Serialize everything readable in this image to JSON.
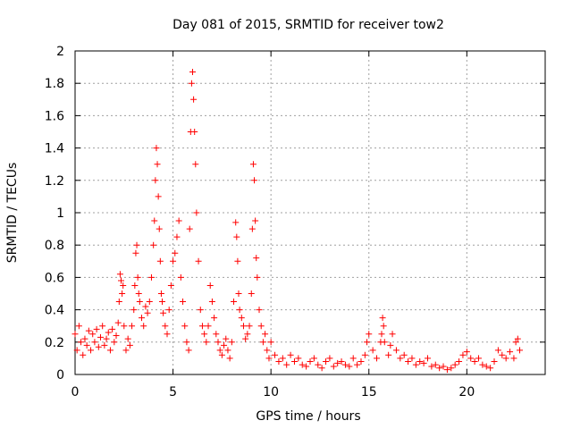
{
  "chart_data": {
    "type": "scatter",
    "title": "Day 081 of 2015, SRMTID for receiver tow2",
    "xlabel": "GPS time / hours",
    "ylabel": "SRMTID / TECUs",
    "xlim": [
      0,
      24
    ],
    "ylim": [
      0,
      2
    ],
    "xticks": [
      0,
      5,
      10,
      15,
      20
    ],
    "xtick_labels": [
      "0",
      "5",
      "10",
      "15",
      "20"
    ],
    "yticks": [
      0,
      0.2,
      0.4,
      0.6,
      0.8,
      1,
      1.2,
      1.4,
      1.6,
      1.8,
      2
    ],
    "ytick_labels": [
      "0",
      "0.2",
      "0.4",
      "0.6",
      "0.8",
      "1",
      "1.2",
      "1.4",
      "1.6",
      "1.8",
      "2"
    ],
    "grid": true,
    "marker": "+",
    "color": "#ff0000",
    "series": [
      {
        "name": "tow2",
        "x": [
          0.0,
          0.1,
          0.2,
          0.3,
          0.4,
          0.5,
          0.6,
          0.7,
          0.8,
          0.9,
          1.0,
          1.1,
          1.2,
          1.3,
          1.4,
          1.5,
          1.6,
          1.7,
          1.8,
          1.9,
          2.0,
          2.1,
          2.2,
          2.25,
          2.3,
          2.35,
          2.4,
          2.45,
          2.5,
          2.6,
          2.7,
          2.8,
          2.9,
          3.0,
          3.05,
          3.1,
          3.15,
          3.2,
          3.25,
          3.3,
          3.4,
          3.5,
          3.6,
          3.7,
          3.8,
          3.9,
          4.0,
          4.05,
          4.1,
          4.15,
          4.2,
          4.25,
          4.3,
          4.35,
          4.4,
          4.45,
          4.5,
          4.6,
          4.7,
          4.8,
          4.9,
          5.0,
          5.1,
          5.2,
          5.3,
          5.4,
          5.5,
          5.6,
          5.7,
          5.8,
          5.85,
          5.9,
          5.95,
          6.0,
          6.05,
          6.1,
          6.15,
          6.2,
          6.3,
          6.4,
          6.5,
          6.6,
          6.7,
          6.8,
          6.9,
          7.0,
          7.1,
          7.2,
          7.3,
          7.4,
          7.5,
          7.6,
          7.7,
          7.8,
          7.9,
          8.0,
          8.1,
          8.2,
          8.25,
          8.3,
          8.35,
          8.4,
          8.5,
          8.6,
          8.7,
          8.8,
          8.9,
          9.0,
          9.05,
          9.1,
          9.15,
          9.2,
          9.25,
          9.3,
          9.4,
          9.5,
          9.6,
          9.7,
          9.8,
          9.9,
          10.0,
          10.2,
          10.4,
          10.6,
          10.8,
          11.0,
          11.2,
          11.4,
          11.6,
          11.8,
          12.0,
          12.2,
          12.4,
          12.6,
          12.8,
          13.0,
          13.2,
          13.4,
          13.6,
          13.8,
          14.0,
          14.2,
          14.4,
          14.6,
          14.8,
          14.9,
          15.0,
          15.2,
          15.4,
          15.6,
          15.65,
          15.7,
          15.75,
          15.8,
          16.0,
          16.1,
          16.2,
          16.4,
          16.6,
          16.8,
          17.0,
          17.2,
          17.4,
          17.6,
          17.8,
          18.0,
          18.2,
          18.4,
          18.6,
          18.8,
          19.0,
          19.2,
          19.4,
          19.6,
          19.8,
          20.0,
          20.2,
          20.4,
          20.6,
          20.8,
          21.0,
          21.2,
          21.4,
          21.6,
          21.8,
          22.0,
          22.2,
          22.4,
          22.5,
          22.6,
          22.7
        ],
        "y": [
          0.25,
          0.15,
          0.3,
          0.2,
          0.12,
          0.22,
          0.18,
          0.27,
          0.15,
          0.25,
          0.2,
          0.28,
          0.17,
          0.23,
          0.3,
          0.18,
          0.22,
          0.26,
          0.15,
          0.28,
          0.2,
          0.24,
          0.32,
          0.45,
          0.62,
          0.58,
          0.5,
          0.55,
          0.3,
          0.15,
          0.22,
          0.18,
          0.3,
          0.4,
          0.55,
          0.75,
          0.8,
          0.6,
          0.5,
          0.45,
          0.35,
          0.3,
          0.42,
          0.38,
          0.45,
          0.6,
          0.8,
          0.95,
          1.2,
          1.4,
          1.3,
          1.1,
          0.9,
          0.7,
          0.5,
          0.45,
          0.38,
          0.3,
          0.25,
          0.4,
          0.55,
          0.7,
          0.75,
          0.85,
          0.95,
          0.6,
          0.45,
          0.3,
          0.2,
          0.15,
          0.9,
          1.5,
          1.8,
          1.87,
          1.7,
          1.5,
          1.3,
          1.0,
          0.7,
          0.4,
          0.3,
          0.25,
          0.2,
          0.3,
          0.55,
          0.45,
          0.35,
          0.25,
          0.2,
          0.15,
          0.12,
          0.18,
          0.22,
          0.15,
          0.1,
          0.2,
          0.45,
          0.94,
          0.85,
          0.7,
          0.5,
          0.4,
          0.35,
          0.3,
          0.22,
          0.25,
          0.3,
          0.5,
          0.9,
          1.3,
          1.2,
          0.95,
          0.72,
          0.6,
          0.4,
          0.3,
          0.2,
          0.25,
          0.15,
          0.1,
          0.2,
          0.12,
          0.08,
          0.1,
          0.06,
          0.12,
          0.08,
          0.1,
          0.06,
          0.05,
          0.08,
          0.1,
          0.06,
          0.04,
          0.08,
          0.1,
          0.05,
          0.07,
          0.08,
          0.06,
          0.05,
          0.1,
          0.06,
          0.08,
          0.12,
          0.2,
          0.25,
          0.15,
          0.1,
          0.2,
          0.25,
          0.35,
          0.3,
          0.2,
          0.12,
          0.18,
          0.25,
          0.15,
          0.1,
          0.12,
          0.08,
          0.1,
          0.06,
          0.08,
          0.07,
          0.1,
          0.05,
          0.06,
          0.04,
          0.05,
          0.03,
          0.04,
          0.06,
          0.08,
          0.12,
          0.14,
          0.1,
          0.08,
          0.1,
          0.06,
          0.05,
          0.04,
          0.08,
          0.15,
          0.12,
          0.1,
          0.14,
          0.1,
          0.2,
          0.22,
          0.15
        ]
      }
    ]
  }
}
